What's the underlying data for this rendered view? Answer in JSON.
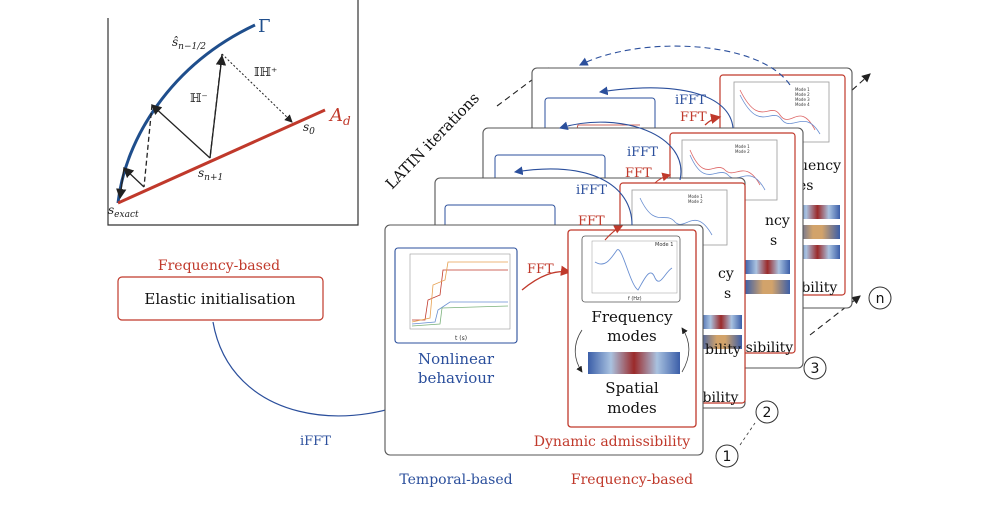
{
  "inset": {
    "gamma_label": "Γ",
    "ad_label": "A",
    "ad_sub": "d",
    "s_half_label": "ŝ",
    "s_half_sub": "n−1/2",
    "h_plus_label": "𝕀ℍ⁺",
    "h_minus_label": "ℍ⁻",
    "s0_label": "s",
    "s0_sub": "0",
    "sn1_label": "s",
    "sn1_sub": "n+1",
    "sexact_label": "s",
    "sexact_sub": "exact"
  },
  "init_block": {
    "header": "Frequency-based",
    "label": "Elastic initialisation"
  },
  "latin_label": "LATIN iterations",
  "arrows": {
    "ifft": "iFFT",
    "fft": "FFT"
  },
  "front_panel": {
    "nonlinear_line1": "Nonlinear",
    "nonlinear_line2": "behaviour",
    "freq_modes_line1": "Frequency",
    "freq_modes_line2": "modes",
    "spatial_modes_line1": "Spatial",
    "spatial_modes_line2": "modes",
    "dynamic_admissibility": "Dynamic admissibility",
    "plot_legend": "Mode 1",
    "x_axis_label": "t (s)",
    "freq_axis_label": "f (Hz)"
  },
  "back_panels": {
    "partial_ibility": "ibility",
    "partial_bility": "bility",
    "partial_issibility": "issibility",
    "partial_dissibility": "dissibility",
    "partial_ncy": "ncy",
    "partial_s": "s",
    "partial_cy": "cy",
    "partial_es": "es",
    "partial_quency": "quency",
    "mode1": "Mode 1",
    "mode2": "Mode 2",
    "mode3": "Mode 3",
    "mode4": "Mode 4"
  },
  "bottom_labels": {
    "temporal": "Temporal-based",
    "frequency": "Frequency-based"
  },
  "iteration_numbers": [
    "1",
    "2",
    "3",
    "n"
  ],
  "colors": {
    "blue": "#2b4f9c",
    "red": "#c0392b",
    "navy": "#1f4e8c",
    "gray": "#555555"
  }
}
